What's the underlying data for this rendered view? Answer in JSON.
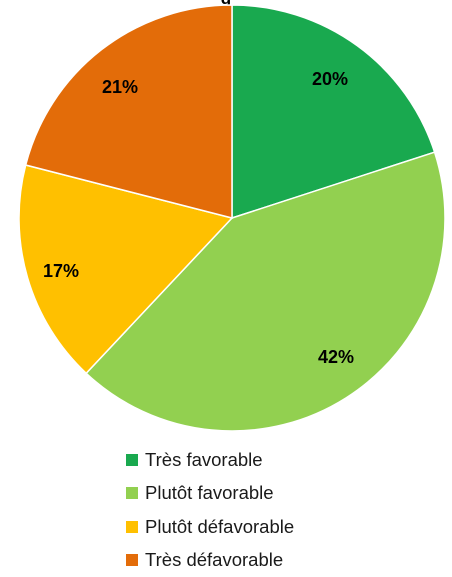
{
  "chart_data": {
    "type": "pie",
    "title": "",
    "title_fragment": "g",
    "slices": [
      {
        "name": "Très favorable",
        "value": 20,
        "label": "20%",
        "color": "#19a94f"
      },
      {
        "name": "Plutôt favorable",
        "value": 42,
        "label": "42%",
        "color": "#92d050"
      },
      {
        "name": "Plutôt défavorable",
        "value": 17,
        "label": "17%",
        "color": "#ffc000"
      },
      {
        "name": "Très défavorable",
        "value": 21,
        "label": "21%",
        "color": "#e36c09"
      }
    ],
    "legend_position": "bottom"
  }
}
